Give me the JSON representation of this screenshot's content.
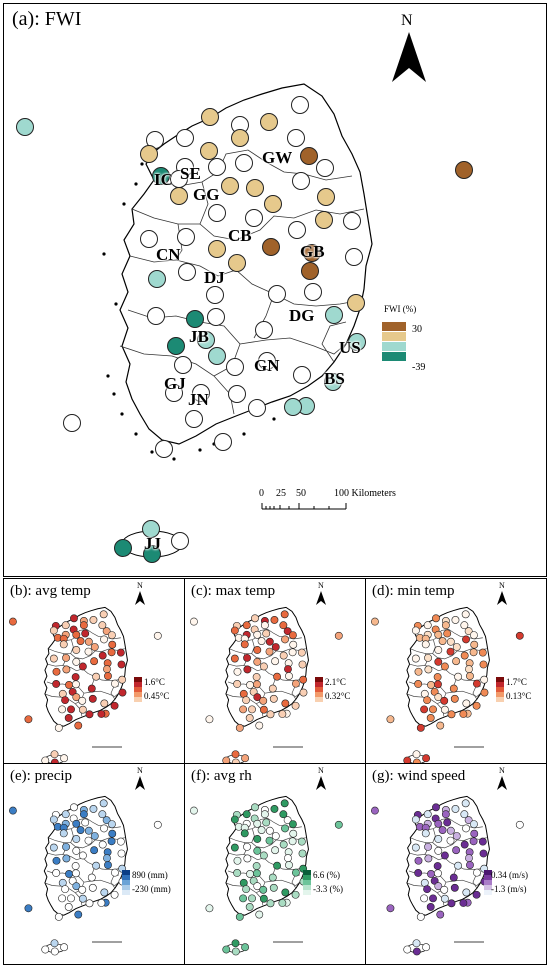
{
  "main": {
    "title": "(a): FWI",
    "north": "N",
    "legend_title": "FWI (%)",
    "legend_max": "30",
    "legend_min": "-39",
    "legend_colors": [
      "#a0622a",
      "#e6c98c",
      "#9fd9cf",
      "#1c8a74"
    ],
    "scale_ticks": [
      "0",
      "25",
      "50",
      "100 Kilometers"
    ],
    "region_labels": [
      "SE",
      "IC",
      "GW",
      "GG",
      "CB",
      "GB",
      "CN",
      "DJ",
      "DG",
      "JB",
      "US",
      "GN",
      "GJ",
      "BS",
      "JN",
      "JJ"
    ]
  },
  "panels": [
    {
      "title": "(b): avg temp",
      "north": "N",
      "max": "1.6°C",
      "min": "0.45°C",
      "ramp": [
        "#7a0b0b",
        "#c1272d",
        "#e25b3a",
        "#f29a6a",
        "#f8d0b0"
      ],
      "empty": "#fff5ec",
      "palette": [
        "#c1272d",
        "#e86a3f",
        "#f4a37a",
        "#f9cfb4"
      ]
    },
    {
      "title": "(c): max temp",
      "north": "N",
      "max": "2.1°C",
      "min": "0.32°C",
      "ramp": [
        "#7a0b0b",
        "#c1272d",
        "#e25b3a",
        "#f29a6a",
        "#f8d0b0"
      ],
      "empty": "#fff5ec",
      "palette": [
        "#c1272d",
        "#e86a3f",
        "#f4a37a",
        "#f9cfb4"
      ]
    },
    {
      "title": "(d): min temp",
      "north": "N",
      "max": "1.7°C",
      "min": "0.13°C",
      "ramp": [
        "#7a0b0b",
        "#c1272d",
        "#e25b3a",
        "#f29a6a",
        "#f8d0b0"
      ],
      "empty": "#fff5ec",
      "palette": [
        "#d43a2f",
        "#f08a55",
        "#f6b88e",
        "#fbe0c8"
      ]
    },
    {
      "title": "(e): precip",
      "north": "N",
      "max": "890 (mm)",
      "min": "-230 (mm)",
      "ramp": [
        "#0b3e86",
        "#2f6fb8",
        "#6aa3d6",
        "#a9cbe8",
        "#dbe9f6"
      ],
      "empty": "#ffffff",
      "palette": [
        "#3b7dc4",
        "#7fb1df",
        "#bad6ef",
        "#ffffff"
      ]
    },
    {
      "title": "(f): avg rh",
      "north": "N",
      "max": "6.6 (%)",
      "min": "-3.3 (%)",
      "ramp": [
        "#0b5e3a",
        "#2f9a62",
        "#6cc49a",
        "#b5e3cc",
        "#e3f5ec"
      ],
      "empty": "#ffffff",
      "palette": [
        "#2f9a62",
        "#6cc49a",
        "#a9dcc2",
        "#e3f5ec"
      ]
    },
    {
      "title": "(g): wind speed",
      "north": "N",
      "max": "0.34 (m/s)",
      "min": "-1.3 (m/s)",
      "ramp": [
        "#4b1670",
        "#7a3aa0",
        "#a97dc8",
        "#d2bfe3",
        "#ecf2fa"
      ],
      "empty": "#ffffff",
      "palette": [
        "#6a2d93",
        "#9a64bf",
        "#c9b0e0",
        "#d8e8f5"
      ]
    }
  ]
}
